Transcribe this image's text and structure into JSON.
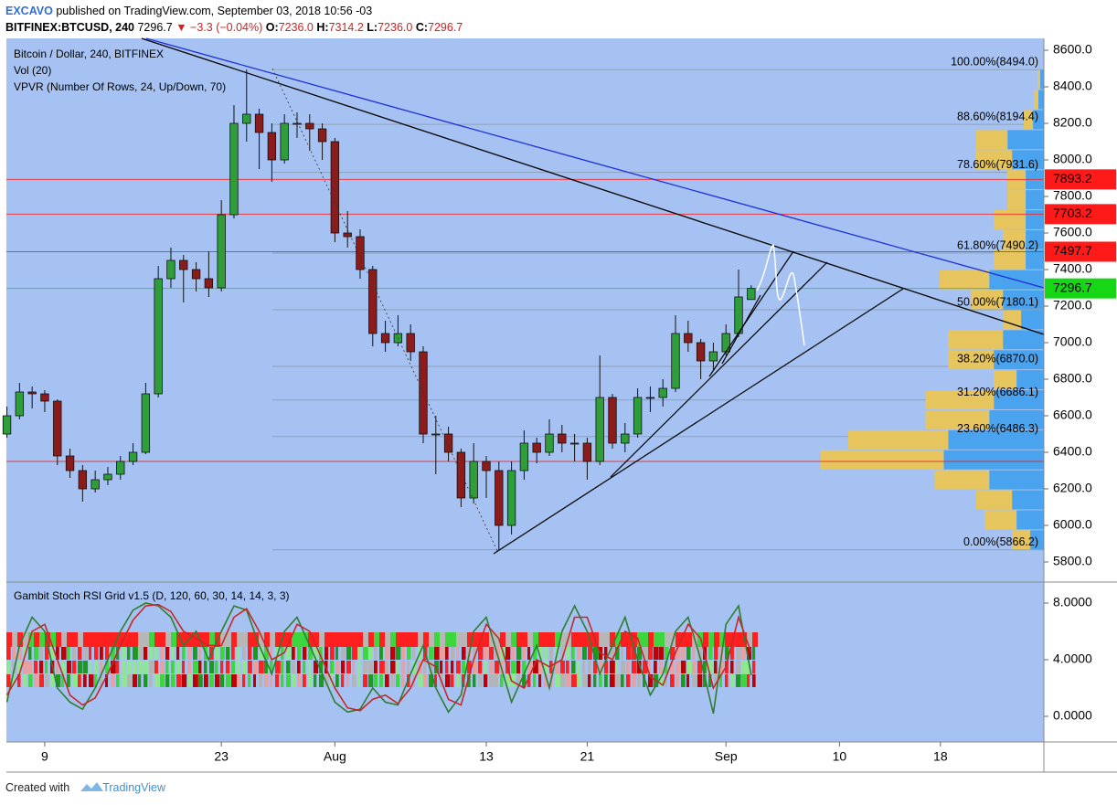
{
  "header": {
    "author": "EXCAVO",
    "published": "published on TradingView.com, September 03, 2018 10:56 -03",
    "symbol": "BITFINEX:BTCUSD, 240",
    "last": "7296.7",
    "change": "▼ −3.3 (−0.04%)",
    "o_label": "O:",
    "o": "7236.0",
    "h_label": "H:",
    "h": "7314.2",
    "l_label": "L:",
    "l": "7236.0",
    "c_label": "C:",
    "c": "7296.7"
  },
  "footer": {
    "created": "Created with",
    "brand": "TradingView"
  },
  "chart_data": [
    {
      "type": "candlestick",
      "title": "Bitcoin / Dollar, 240, BITFINEX",
      "indicators": [
        "Vol (20)",
        "VPVR (Number Of Rows, 24, Up/Down, 70)"
      ],
      "x": [
        5,
        6,
        7,
        8,
        9,
        10,
        11,
        12,
        13,
        14,
        15,
        16,
        17,
        18,
        19,
        20,
        21,
        22,
        23,
        24,
        25,
        26,
        27,
        28,
        29,
        30,
        31,
        32,
        33,
        34,
        35,
        36,
        37,
        38,
        39,
        40,
        41,
        42,
        43,
        44,
        45,
        46,
        47,
        48,
        49,
        50,
        51,
        52,
        53,
        54,
        55,
        56,
        57,
        58,
        59,
        60,
        61,
        62,
        63,
        64
      ],
      "candles": [
        [
          6500,
          6650,
          6480,
          6600
        ],
        [
          6600,
          6780,
          6580,
          6730
        ],
        [
          6730,
          6760,
          6640,
          6720
        ],
        [
          6720,
          6740,
          6620,
          6680
        ],
        [
          6680,
          6690,
          6330,
          6380
        ],
        [
          6380,
          6420,
          6260,
          6300
        ],
        [
          6300,
          6330,
          6130,
          6200
        ],
        [
          6200,
          6300,
          6180,
          6250
        ],
        [
          6250,
          6320,
          6220,
          6280
        ],
        [
          6280,
          6380,
          6250,
          6350
        ],
        [
          6350,
          6450,
          6330,
          6400
        ],
        [
          6400,
          6780,
          6390,
          6720
        ],
        [
          6720,
          7420,
          6700,
          7350
        ],
        [
          7350,
          7520,
          7300,
          7450
        ],
        [
          7450,
          7480,
          7220,
          7400
        ],
        [
          7400,
          7440,
          7280,
          7350
        ],
        [
          7350,
          7500,
          7250,
          7300
        ],
        [
          7300,
          7780,
          7280,
          7700
        ],
        [
          7700,
          8300,
          7680,
          8200
        ],
        [
          8200,
          8494,
          8100,
          8250
        ],
        [
          8250,
          8280,
          7950,
          8150
        ],
        [
          8150,
          8200,
          7880,
          8000
        ],
        [
          8000,
          8250,
          7980,
          8200
        ],
        [
          8200,
          8260,
          8120,
          8200
        ],
        [
          8200,
          8250,
          8050,
          8170
        ],
        [
          8170,
          8200,
          8000,
          8100
        ],
        [
          8100,
          8120,
          7550,
          7600
        ],
        [
          7600,
          7720,
          7520,
          7580
        ],
        [
          7580,
          7620,
          7350,
          7400
        ],
        [
          7400,
          7420,
          6980,
          7050
        ],
        [
          7050,
          7120,
          6950,
          7000
        ],
        [
          7000,
          7150,
          6980,
          7050
        ],
        [
          7050,
          7100,
          6900,
          6950
        ],
        [
          6950,
          6980,
          6450,
          6500
        ],
        [
          6500,
          6600,
          6280,
          6500
        ],
        [
          6500,
          6540,
          6350,
          6400
        ],
        [
          6400,
          6420,
          6100,
          6150
        ],
        [
          6150,
          6450,
          6120,
          6350
        ],
        [
          6350,
          6380,
          6150,
          6300
        ],
        [
          6300,
          6350,
          5866.2,
          6000
        ],
        [
          6000,
          6350,
          5950,
          6300
        ],
        [
          6300,
          6520,
          6250,
          6450
        ],
        [
          6450,
          6480,
          6340,
          6400
        ],
        [
          6400,
          6580,
          6380,
          6500
        ],
        [
          6500,
          6550,
          6400,
          6450
        ],
        [
          6450,
          6500,
          6350,
          6450
        ],
        [
          6450,
          6480,
          6250,
          6350
        ],
        [
          6350,
          6930,
          6330,
          6700
        ],
        [
          6700,
          6720,
          6420,
          6450
        ],
        [
          6450,
          6560,
          6400,
          6500
        ],
        [
          6500,
          6750,
          6480,
          6700
        ],
        [
          6700,
          6760,
          6620,
          6700
        ],
        [
          6700,
          6800,
          6650,
          6750
        ],
        [
          6750,
          7150,
          6730,
          7050
        ],
        [
          7050,
          7120,
          6950,
          7000
        ],
        [
          7000,
          7020,
          6800,
          6900
        ],
        [
          6900,
          7000,
          6850,
          6950
        ],
        [
          6950,
          7100,
          6930,
          7050
        ],
        [
          7050,
          7400,
          7030,
          7250
        ],
        [
          7236,
          7314.2,
          7236,
          7296.7
        ]
      ],
      "up_color": "#2f9e3a",
      "down_color": "#8c1c1c",
      "xlim": [
        4.96,
        87.2
      ],
      "xticks": [
        {
          "value": 8,
          "label": "9"
        },
        {
          "value": 22,
          "label": "23"
        },
        {
          "value": 31,
          "label": "Aug"
        },
        {
          "value": 43,
          "label": "13"
        },
        {
          "value": 51,
          "label": "21"
        },
        {
          "value": 62,
          "label": "Sep"
        },
        {
          "value": 71,
          "label": "10"
        },
        {
          "value": 79,
          "label": "18"
        }
      ],
      "ylim": [
        5700,
        8665
      ],
      "yticks": [
        {
          "value": 8600,
          "label": "8600.0"
        },
        {
          "value": 8400,
          "label": "8400.0"
        },
        {
          "value": 8200,
          "label": "8200.0"
        },
        {
          "value": 8000,
          "label": "8000.0"
        },
        {
          "value": 7800,
          "label": "7800.0"
        },
        {
          "value": 7600,
          "label": "7600.0"
        },
        {
          "value": 7400,
          "label": "7400.0"
        },
        {
          "value": 7200,
          "label": "7200.0"
        },
        {
          "value": 7000,
          "label": "7000.0"
        },
        {
          "value": 6800,
          "label": "6800.0"
        },
        {
          "value": 6600,
          "label": "6600.0"
        },
        {
          "value": 6400,
          "label": "6400.0"
        },
        {
          "value": 6200,
          "label": "6200.0"
        },
        {
          "value": 6000,
          "label": "6000.0"
        },
        {
          "value": 5800,
          "label": "5800.0"
        }
      ],
      "fib_levels": [
        {
          "value": 8494,
          "label": "100.00%(8494.0)"
        },
        {
          "value": 8194.4,
          "label": "88.60%(8194.4)"
        },
        {
          "value": 7931.6,
          "label": "78.60%(7931.6)"
        },
        {
          "value": 7490.2,
          "label": "61.80%(7490.2)"
        },
        {
          "value": 7180.1,
          "label": "50.00%(7180.1)"
        },
        {
          "value": 6870,
          "label": "38.20%(6870.0)"
        },
        {
          "value": 6686.1,
          "label": "31.20%(6686.1)"
        },
        {
          "value": 6486.3,
          "label": "23.60%(6486.3)"
        },
        {
          "value": 5866.2,
          "label": "0.00%(5866.2)"
        }
      ],
      "hlines": [
        {
          "value": 7893.2,
          "color": "#ff1a1a",
          "badge": true
        },
        {
          "value": 7703.2,
          "color": "#ff1a1a",
          "badge": true
        },
        {
          "value": 7497.7,
          "color": "#ff1a1a",
          "badge": true
        },
        {
          "value": 6350,
          "color": "#e02020",
          "badge": false
        },
        {
          "value": 7296.7,
          "color": "#16d616",
          "badge": true
        }
      ],
      "vpvr": {
        "up": [
          15,
          30,
          35,
          60,
          110,
          105,
          60,
          55,
          30,
          55,
          45,
          25,
          45,
          60,
          20,
          20,
          20,
          20,
          20,
          35,
          40,
          12,
          6,
          4
        ],
        "down": [
          20,
          35,
          40,
          60,
          135,
          110,
          70,
          75,
          25,
          50,
          60,
          20,
          35,
          55,
          35,
          25,
          35,
          20,
          20,
          40,
          35,
          10,
          5,
          3
        ],
        "up_color": "#4aa3ee",
        "down_color": "#e6c55f"
      }
    },
    {
      "type": "line",
      "title": "Gambit Stoch RSI Grid v1.5 (D, 120, 60, 30, 14, 14, 3, 3)",
      "x": [
        5,
        6,
        7,
        8,
        9,
        10,
        11,
        12,
        13,
        14,
        15,
        16,
        17,
        18,
        19,
        20,
        21,
        22,
        23,
        24,
        25,
        26,
        27,
        28,
        29,
        30,
        31,
        32,
        33,
        34,
        35,
        36,
        37,
        38,
        39,
        40,
        41,
        42,
        43,
        44,
        45,
        46,
        47,
        48,
        49,
        50,
        51,
        52,
        53,
        54,
        55,
        56,
        57,
        58,
        59,
        60,
        61,
        62,
        63,
        64
      ],
      "series": [
        {
          "color": "#2e7d32",
          "values": [
            1,
            5,
            7,
            6,
            2,
            1,
            0.5,
            2,
            4,
            6,
            7.5,
            8,
            7.8,
            7,
            5,
            6,
            4,
            6,
            7.8,
            7.5,
            5,
            3,
            6,
            7,
            5,
            3,
            1,
            0.3,
            0.5,
            2,
            1,
            0.8,
            3,
            5,
            2,
            0.3,
            1.5,
            6,
            7,
            4,
            1,
            3,
            5,
            2,
            6,
            7.8,
            6,
            3,
            5,
            7,
            4,
            1.5,
            3,
            6,
            7,
            4,
            0.2,
            6.5,
            7.8,
            2.9
          ]
        },
        {
          "color": "#c62828",
          "values": [
            1.5,
            3,
            6,
            6.5,
            4,
            1.5,
            0.8,
            1.3,
            3,
            5,
            6.8,
            7.8,
            7.9,
            7.4,
            6,
            5.5,
            5,
            5,
            7,
            7.6,
            6,
            4,
            4.5,
            6.5,
            6,
            4,
            2,
            0.6,
            0.4,
            1.2,
            1.5,
            0.9,
            2,
            4,
            3.5,
            1.2,
            0.8,
            4,
            6.5,
            5.5,
            2.5,
            2,
            4,
            3.5,
            4,
            7,
            7,
            4.5,
            4,
            6,
            5.5,
            2.8,
            2.2,
            4.5,
            6.5,
            5.5,
            2,
            3.5,
            7,
            4.5
          ]
        }
      ],
      "ylim": [
        -1.68,
        9.29
      ],
      "yticks": [
        {
          "value": 8,
          "label": "8.0000"
        },
        {
          "value": 4,
          "label": "4.0000"
        },
        {
          "value": 0,
          "label": "0.0000"
        }
      ]
    }
  ]
}
